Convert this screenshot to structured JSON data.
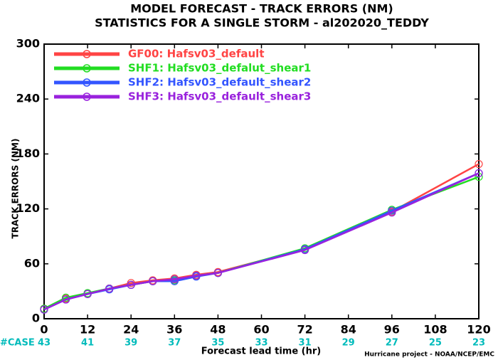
{
  "chart_data": {
    "type": "line",
    "title": "MODEL FORECAST - TRACK ERRORS (NM)",
    "subtitle": "STATISTICS FOR A SINGLE STORM - al202020_TEDDY",
    "x_label": "Forecast lead time (hr)",
    "y_label": "TRACK ERRORS (NM)",
    "footer": "Hurricane project - NOAA/NCEP/EMC",
    "x": [
      0,
      6,
      12,
      18,
      24,
      30,
      36,
      42,
      48,
      72,
      96,
      120
    ],
    "series": [
      {
        "name": "GF00: Hafsv03_default",
        "color": "#ff4444",
        "values": [
          11,
          22,
          27,
          33,
          39,
          42,
          44,
          48,
          51,
          76,
          117,
          169
        ]
      },
      {
        "name": "SHF1: Hafsv03_defalut_shear1",
        "color": "#22dd22",
        "values": [
          11,
          23,
          28,
          33,
          37,
          41,
          42,
          47,
          50,
          77,
          119,
          155
        ]
      },
      {
        "name": "SHF2: Hafsv03_default_shear2",
        "color": "#3355ff",
        "values": [
          10,
          21,
          27,
          32,
          37,
          41,
          41,
          46,
          50,
          76,
          118,
          159
        ]
      },
      {
        "name": "SHF3: Hafsv03_default_shear3",
        "color": "#9922dd",
        "values": [
          10,
          21,
          27,
          33,
          37,
          41,
          43,
          47,
          50,
          75,
          116,
          159
        ]
      }
    ],
    "xlim": [
      0,
      120
    ],
    "xticks": [
      0,
      12,
      24,
      36,
      48,
      60,
      72,
      84,
      96,
      108,
      120
    ],
    "ylim": [
      0,
      300
    ],
    "yticks": [
      0,
      60,
      120,
      180,
      240,
      300
    ],
    "cases": {
      "label": "#CASE",
      "color": "#00bbbb",
      "x": [
        0,
        12,
        24,
        36,
        48,
        60,
        72,
        84,
        96,
        108,
        120
      ],
      "values": [
        43,
        41,
        39,
        37,
        35,
        33,
        31,
        29,
        27,
        25,
        23
      ]
    },
    "legend": "upper left"
  }
}
